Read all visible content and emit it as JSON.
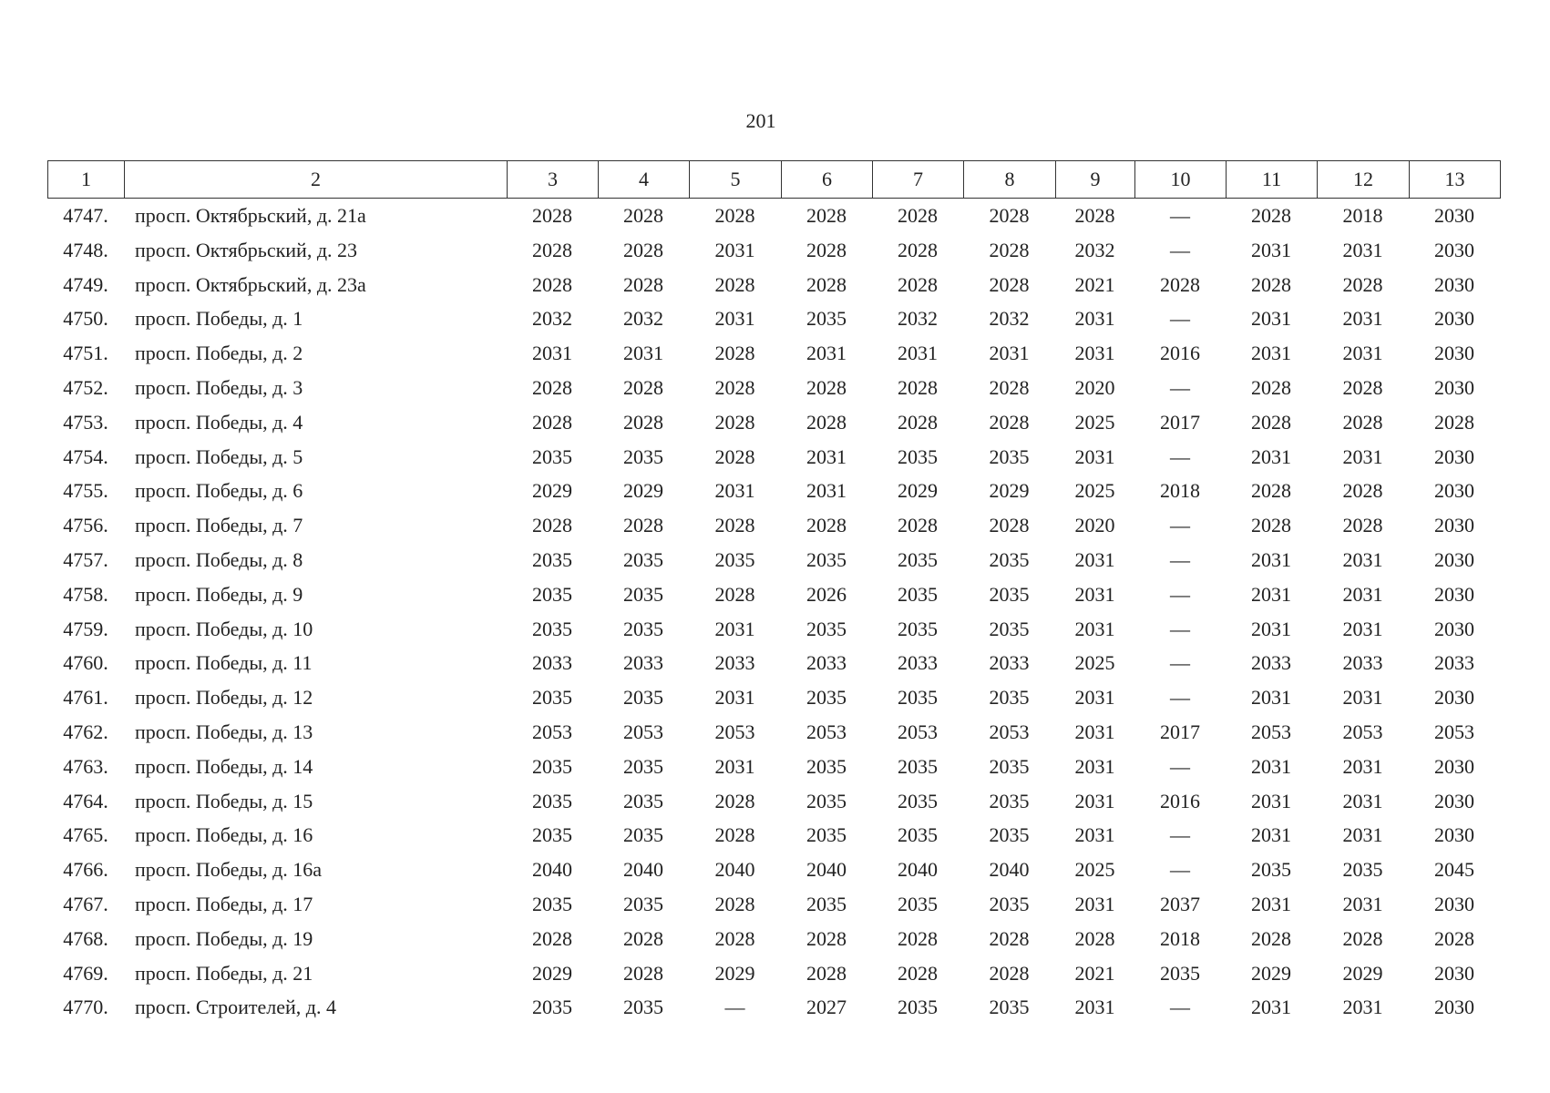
{
  "page_number": "201",
  "table": {
    "header": [
      "1",
      "2",
      "3",
      "4",
      "5",
      "6",
      "7",
      "8",
      "9",
      "10",
      "11",
      "12",
      "13"
    ],
    "rows": [
      [
        "4747.",
        "просп. Октябрьский, д. 21а",
        "2028",
        "2028",
        "2028",
        "2028",
        "2028",
        "2028",
        "2028",
        "—",
        "2028",
        "2018",
        "2030"
      ],
      [
        "4748.",
        "просп. Октябрьский, д. 23",
        "2028",
        "2028",
        "2031",
        "2028",
        "2028",
        "2028",
        "2032",
        "—",
        "2031",
        "2031",
        "2030"
      ],
      [
        "4749.",
        "просп. Октябрьский, д. 23а",
        "2028",
        "2028",
        "2028",
        "2028",
        "2028",
        "2028",
        "2021",
        "2028",
        "2028",
        "2028",
        "2030"
      ],
      [
        "4750.",
        "просп. Победы, д. 1",
        "2032",
        "2032",
        "2031",
        "2035",
        "2032",
        "2032",
        "2031",
        "—",
        "2031",
        "2031",
        "2030"
      ],
      [
        "4751.",
        "просп. Победы, д. 2",
        "2031",
        "2031",
        "2028",
        "2031",
        "2031",
        "2031",
        "2031",
        "2016",
        "2031",
        "2031",
        "2030"
      ],
      [
        "4752.",
        "просп. Победы, д. 3",
        "2028",
        "2028",
        "2028",
        "2028",
        "2028",
        "2028",
        "2020",
        "—",
        "2028",
        "2028",
        "2030"
      ],
      [
        "4753.",
        "просп. Победы, д. 4",
        "2028",
        "2028",
        "2028",
        "2028",
        "2028",
        "2028",
        "2025",
        "2017",
        "2028",
        "2028",
        "2028"
      ],
      [
        "4754.",
        "просп. Победы, д. 5",
        "2035",
        "2035",
        "2028",
        "2031",
        "2035",
        "2035",
        "2031",
        "—",
        "2031",
        "2031",
        "2030"
      ],
      [
        "4755.",
        "просп. Победы, д. 6",
        "2029",
        "2029",
        "2031",
        "2031",
        "2029",
        "2029",
        "2025",
        "2018",
        "2028",
        "2028",
        "2030"
      ],
      [
        "4756.",
        "просп. Победы, д. 7",
        "2028",
        "2028",
        "2028",
        "2028",
        "2028",
        "2028",
        "2020",
        "—",
        "2028",
        "2028",
        "2030"
      ],
      [
        "4757.",
        "просп. Победы, д. 8",
        "2035",
        "2035",
        "2035",
        "2035",
        "2035",
        "2035",
        "2031",
        "—",
        "2031",
        "2031",
        "2030"
      ],
      [
        "4758.",
        "просп. Победы, д. 9",
        "2035",
        "2035",
        "2028",
        "2026",
        "2035",
        "2035",
        "2031",
        "—",
        "2031",
        "2031",
        "2030"
      ],
      [
        "4759.",
        "просп. Победы, д. 10",
        "2035",
        "2035",
        "2031",
        "2035",
        "2035",
        "2035",
        "2031",
        "—",
        "2031",
        "2031",
        "2030"
      ],
      [
        "4760.",
        "просп. Победы, д. 11",
        "2033",
        "2033",
        "2033",
        "2033",
        "2033",
        "2033",
        "2025",
        "—",
        "2033",
        "2033",
        "2033"
      ],
      [
        "4761.",
        "просп. Победы, д. 12",
        "2035",
        "2035",
        "2031",
        "2035",
        "2035",
        "2035",
        "2031",
        "—",
        "2031",
        "2031",
        "2030"
      ],
      [
        "4762.",
        "просп. Победы, д. 13",
        "2053",
        "2053",
        "2053",
        "2053",
        "2053",
        "2053",
        "2031",
        "2017",
        "2053",
        "2053",
        "2053"
      ],
      [
        "4763.",
        "просп. Победы, д. 14",
        "2035",
        "2035",
        "2031",
        "2035",
        "2035",
        "2035",
        "2031",
        "—",
        "2031",
        "2031",
        "2030"
      ],
      [
        "4764.",
        "просп. Победы, д. 15",
        "2035",
        "2035",
        "2028",
        "2035",
        "2035",
        "2035",
        "2031",
        "2016",
        "2031",
        "2031",
        "2030"
      ],
      [
        "4765.",
        "просп. Победы, д. 16",
        "2035",
        "2035",
        "2028",
        "2035",
        "2035",
        "2035",
        "2031",
        "—",
        "2031",
        "2031",
        "2030"
      ],
      [
        "4766.",
        "просп. Победы, д. 16а",
        "2040",
        "2040",
        "2040",
        "2040",
        "2040",
        "2040",
        "2025",
        "—",
        "2035",
        "2035",
        "2045"
      ],
      [
        "4767.",
        "просп. Победы, д. 17",
        "2035",
        "2035",
        "2028",
        "2035",
        "2035",
        "2035",
        "2031",
        "2037",
        "2031",
        "2031",
        "2030"
      ],
      [
        "4768.",
        "просп. Победы, д. 19",
        "2028",
        "2028",
        "2028",
        "2028",
        "2028",
        "2028",
        "2028",
        "2018",
        "2028",
        "2028",
        "2028"
      ],
      [
        "4769.",
        "просп. Победы, д. 21",
        "2029",
        "2028",
        "2029",
        "2028",
        "2028",
        "2028",
        "2021",
        "2035",
        "2029",
        "2029",
        "2030"
      ],
      [
        "4770.",
        "просп. Строителей, д. 4",
        "2035",
        "2035",
        "—",
        "2027",
        "2035",
        "2035",
        "2031",
        "—",
        "2031",
        "2031",
        "2030"
      ]
    ]
  }
}
